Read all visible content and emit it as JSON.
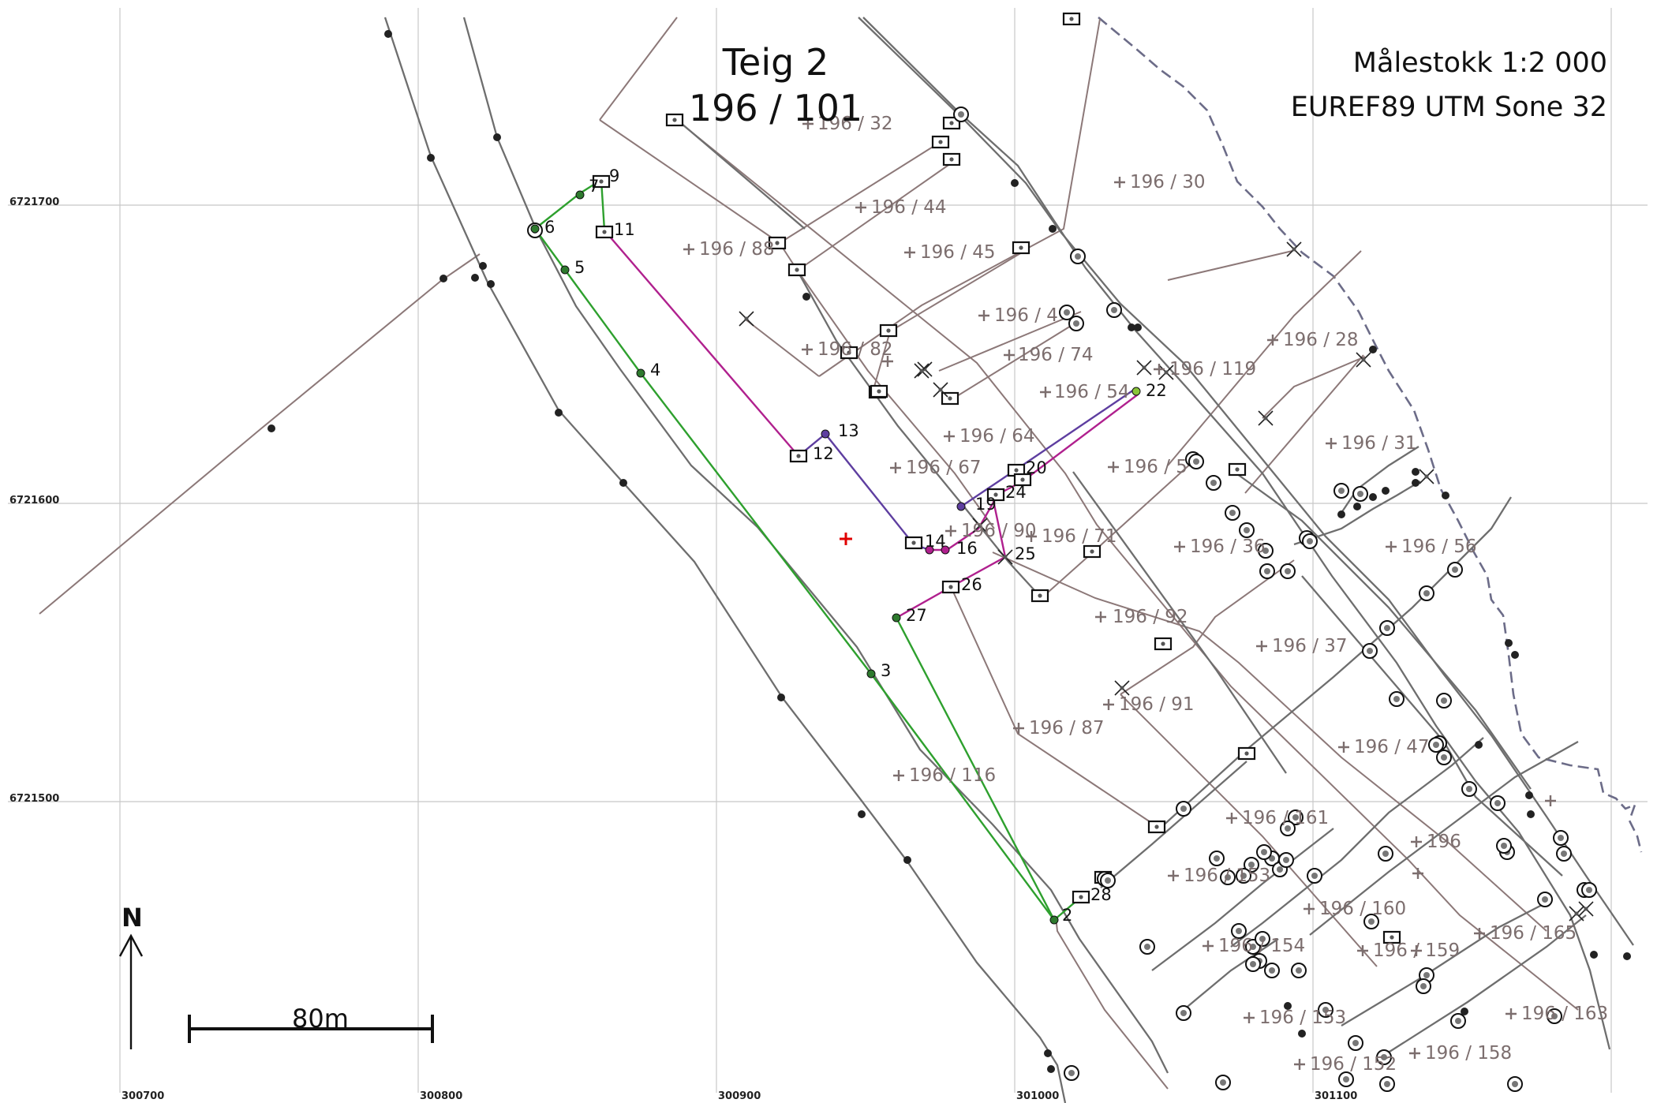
{
  "title": {
    "line1": "Teig 2",
    "line2": "196 / 101"
  },
  "scale_text": "Målestokk 1:2 000",
  "crs_text": "EUREF89 UTM Sone 32",
  "north_label": "N",
  "scalebar_label": "80m",
  "grid": {
    "easting_labels": [
      "300700",
      "300800",
      "300900",
      "301000",
      "301100"
    ],
    "northing_labels": [
      "6721700",
      "6721600",
      "6721500"
    ]
  },
  "colors": {
    "grid": "#c8c8c8",
    "road": "#6e6e6e",
    "parcel_line": "#8c7878",
    "boundary_green": "#2ea02e",
    "boundary_magenta": "#b0208e",
    "boundary_purple": "#5e3ea0",
    "parcel_label": "#7c6e6e",
    "coast": "#6c6c88",
    "center_cross": "#e00000"
  },
  "point_numbers": [
    "2",
    "3",
    "4",
    "5",
    "6",
    "7",
    "9",
    "11",
    "12",
    "13",
    "14",
    "16",
    "19",
    "20",
    "22",
    "24",
    "25",
    "26",
    "27",
    "28"
  ],
  "parcel_labels": [
    "196 / 32",
    "196 / 30",
    "196 / 44",
    "196 / 88",
    "196 / 45",
    "196 / 4",
    "196 / 82",
    "196 / 74",
    "196 / 28",
    "196 / 119",
    "196 / 54",
    "196 / 64",
    "196 / 31",
    "196 / 67",
    "196 / 5",
    "196 / 90",
    "196 / 71",
    "196 / 36",
    "196 / 56",
    "196 / 92",
    "196 / 37",
    "196 / 91",
    "196 / 87",
    "196 / 47",
    "196 / 116",
    "196 / 161",
    "196",
    "196 / 153",
    "196 / 160",
    "196 / 154",
    "196 / 165",
    "196 / 159",
    "196 / 153",
    "196 / 163",
    "196 / 152",
    "196 / 158"
  ]
}
